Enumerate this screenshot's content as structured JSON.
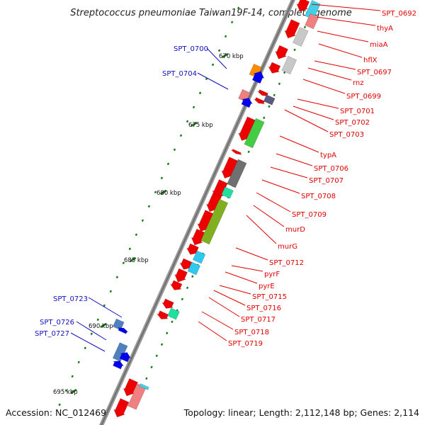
{
  "title": "Streptococcus pneumoniae Taiwan19F-14, complete genome",
  "footer": {
    "accession": "Accession: NC_012469",
    "topology": "Topology: linear; Length: 2,112,148 bp; Genes: 2,114"
  },
  "colors": {
    "forward_label": "#e00000",
    "reverse_label": "#1010c0",
    "backbone": "#777777",
    "tick": "#1a7a1a"
  },
  "scale_labels": [
    "670 kbp",
    "675 kbp",
    "680 kbp",
    "685 kbp",
    "690 kbp",
    "695 kbp"
  ],
  "forward_genes": [
    {
      "label": "SPT_0692"
    },
    {
      "label": "thyA"
    },
    {
      "label": "miaA"
    },
    {
      "label": "hflX"
    },
    {
      "label": "SPT_0697"
    },
    {
      "label": "rnz"
    },
    {
      "label": "SPT_0699"
    },
    {
      "label": "SPT_0701"
    },
    {
      "label": "SPT_0702"
    },
    {
      "label": "SPT_0703"
    },
    {
      "label": "typA"
    },
    {
      "label": "SPT_0706"
    },
    {
      "label": "SPT_0707"
    },
    {
      "label": "SPT_0708"
    },
    {
      "label": "SPT_0709"
    },
    {
      "label": "murD"
    },
    {
      "label": "murG"
    },
    {
      "label": "SPT_0712"
    },
    {
      "label": "pyrF"
    },
    {
      "label": "pyrE"
    },
    {
      "label": "SPT_0715"
    },
    {
      "label": "SPT_0716"
    },
    {
      "label": "SPT_0717"
    },
    {
      "label": "SPT_0718"
    },
    {
      "label": "SPT_0719"
    }
  ],
  "reverse_genes": [
    {
      "label": "SPT_0700"
    },
    {
      "label": "SPT_0704"
    },
    {
      "label": "SPT_0723"
    },
    {
      "label": "SPT_0726"
    },
    {
      "label": "SPT_0727"
    }
  ]
}
